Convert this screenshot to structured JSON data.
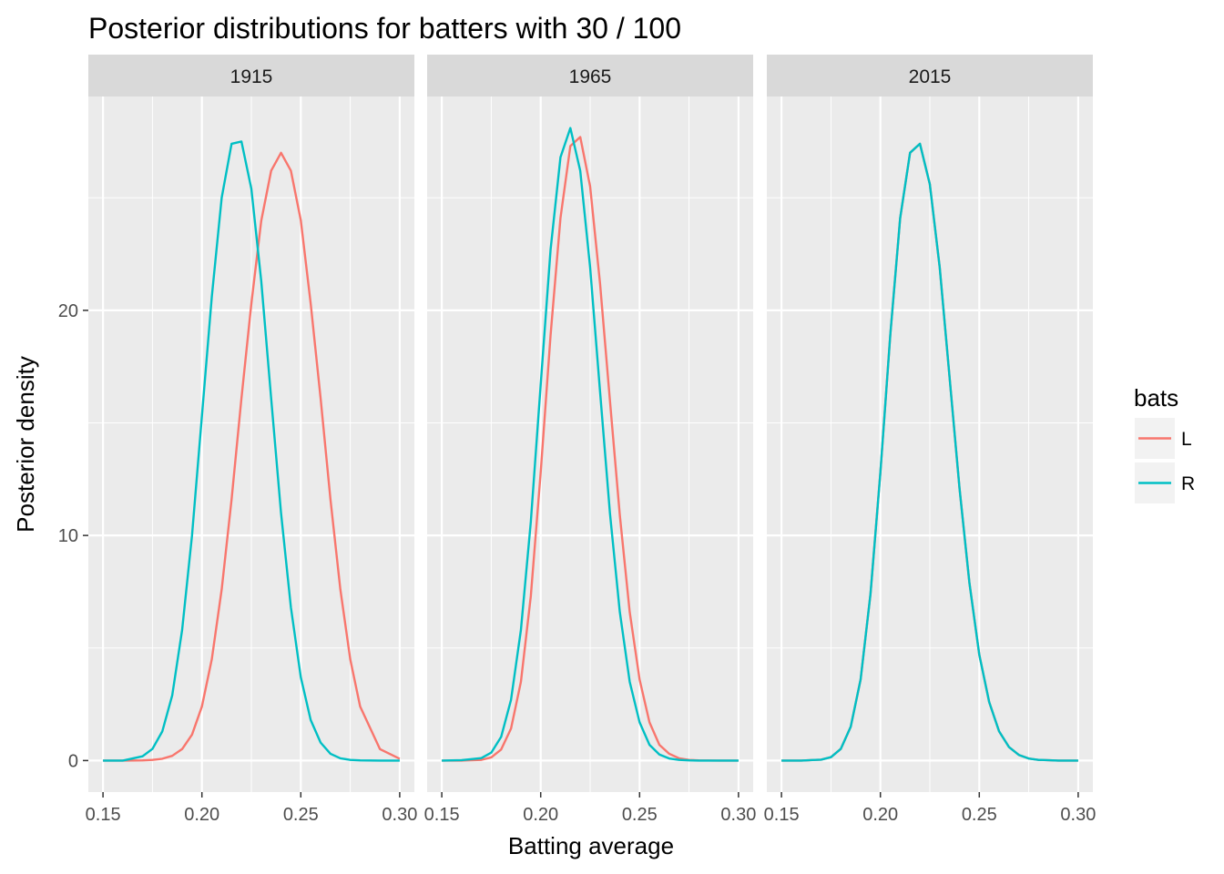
{
  "chart_data": {
    "type": "line",
    "title": "Posterior distributions for batters with 30 / 100",
    "xlabel": "Batting average",
    "ylabel": "Posterior density",
    "xlim": [
      0.15,
      0.3
    ],
    "ylim": [
      -1.4,
      29.5
    ],
    "x_ticks": [
      0.15,
      0.2,
      0.25,
      0.3
    ],
    "x_tick_labels": [
      "0.15",
      "0.20",
      "0.25",
      "0.30"
    ],
    "y_ticks": [
      0,
      10,
      20
    ],
    "y_tick_labels": [
      "0",
      "10",
      "20"
    ],
    "grid": true,
    "legend": {
      "title": "bats",
      "position": "right",
      "entries": [
        {
          "label": "L",
          "color": "#F8766D"
        },
        {
          "label": "R",
          "color": "#00BFC4"
        }
      ]
    },
    "x": [
      0.15,
      0.16,
      0.17,
      0.175,
      0.18,
      0.185,
      0.19,
      0.195,
      0.2,
      0.205,
      0.21,
      0.215,
      0.22,
      0.225,
      0.23,
      0.235,
      0.24,
      0.245,
      0.25,
      0.255,
      0.26,
      0.265,
      0.27,
      0.275,
      0.28,
      0.29,
      0.3
    ],
    "panels": [
      {
        "label": "1915",
        "series": [
          {
            "name": "L",
            "color": "#F8766D",
            "values": [
              0,
              0,
              0.01,
              0.03,
              0.08,
              0.21,
              0.51,
              1.15,
              2.4,
              4.5,
              7.6,
              11.6,
              16.1,
              20.3,
              23.98,
              26.2,
              27.0,
              26.2,
              24.0,
              20.3,
              16.1,
              11.6,
              7.6,
              4.5,
              2.4,
              0.51,
              0.08
            ]
          },
          {
            "name": "R",
            "color": "#00BFC4",
            "values": [
              0,
              0,
              0.19,
              0.52,
              1.3,
              2.9,
              5.8,
              10.0,
              15.3,
              20.6,
              25.0,
              27.4,
              27.5,
              25.4,
              21.3,
              16.1,
              11.0,
              6.8,
              3.7,
              1.8,
              0.8,
              0.3,
              0.1,
              0.03,
              0.01,
              0,
              0
            ]
          }
        ]
      },
      {
        "label": "1965",
        "series": [
          {
            "name": "L",
            "color": "#F8766D",
            "values": [
              0,
              0,
              0.03,
              0.14,
              0.49,
              1.42,
              3.5,
              7.3,
              12.8,
              18.9,
              24.1,
              27.3,
              27.7,
              25.5,
              21.2,
              16.0,
              10.9,
              6.6,
              3.6,
              1.7,
              0.7,
              0.3,
              0.1,
              0.03,
              0.01,
              0,
              0
            ]
          },
          {
            "name": "R",
            "color": "#00BFC4",
            "values": [
              0,
              0.02,
              0.11,
              0.35,
              1.05,
              2.7,
              5.8,
              10.6,
              16.7,
              22.7,
              26.8,
              28.1,
              26.2,
              21.9,
              16.4,
              11.0,
              6.6,
              3.5,
              1.7,
              0.7,
              0.27,
              0.09,
              0.03,
              0.01,
              0,
              0,
              0
            ]
          }
        ]
      },
      {
        "label": "2015",
        "series": [
          {
            "name": "L",
            "color": "#F8766D",
            "values": [
              0,
              0,
              0.04,
              0.15,
              0.52,
              1.5,
              3.6,
              7.4,
              12.8,
              18.9,
              24.1,
              27.0,
              27.4,
              25.6,
              21.9,
              17.0,
              12.1,
              7.9,
              4.7,
              2.6,
              1.3,
              0.6,
              0.25,
              0.09,
              0.03,
              0,
              0
            ]
          },
          {
            "name": "R",
            "color": "#00BFC4",
            "values": [
              0,
              0,
              0.04,
              0.15,
              0.52,
              1.5,
              3.6,
              7.4,
              12.8,
              18.9,
              24.1,
              27.0,
              27.4,
              25.6,
              21.9,
              17.0,
              12.1,
              7.9,
              4.7,
              2.6,
              1.3,
              0.6,
              0.25,
              0.09,
              0.03,
              0,
              0
            ]
          }
        ]
      }
    ]
  }
}
